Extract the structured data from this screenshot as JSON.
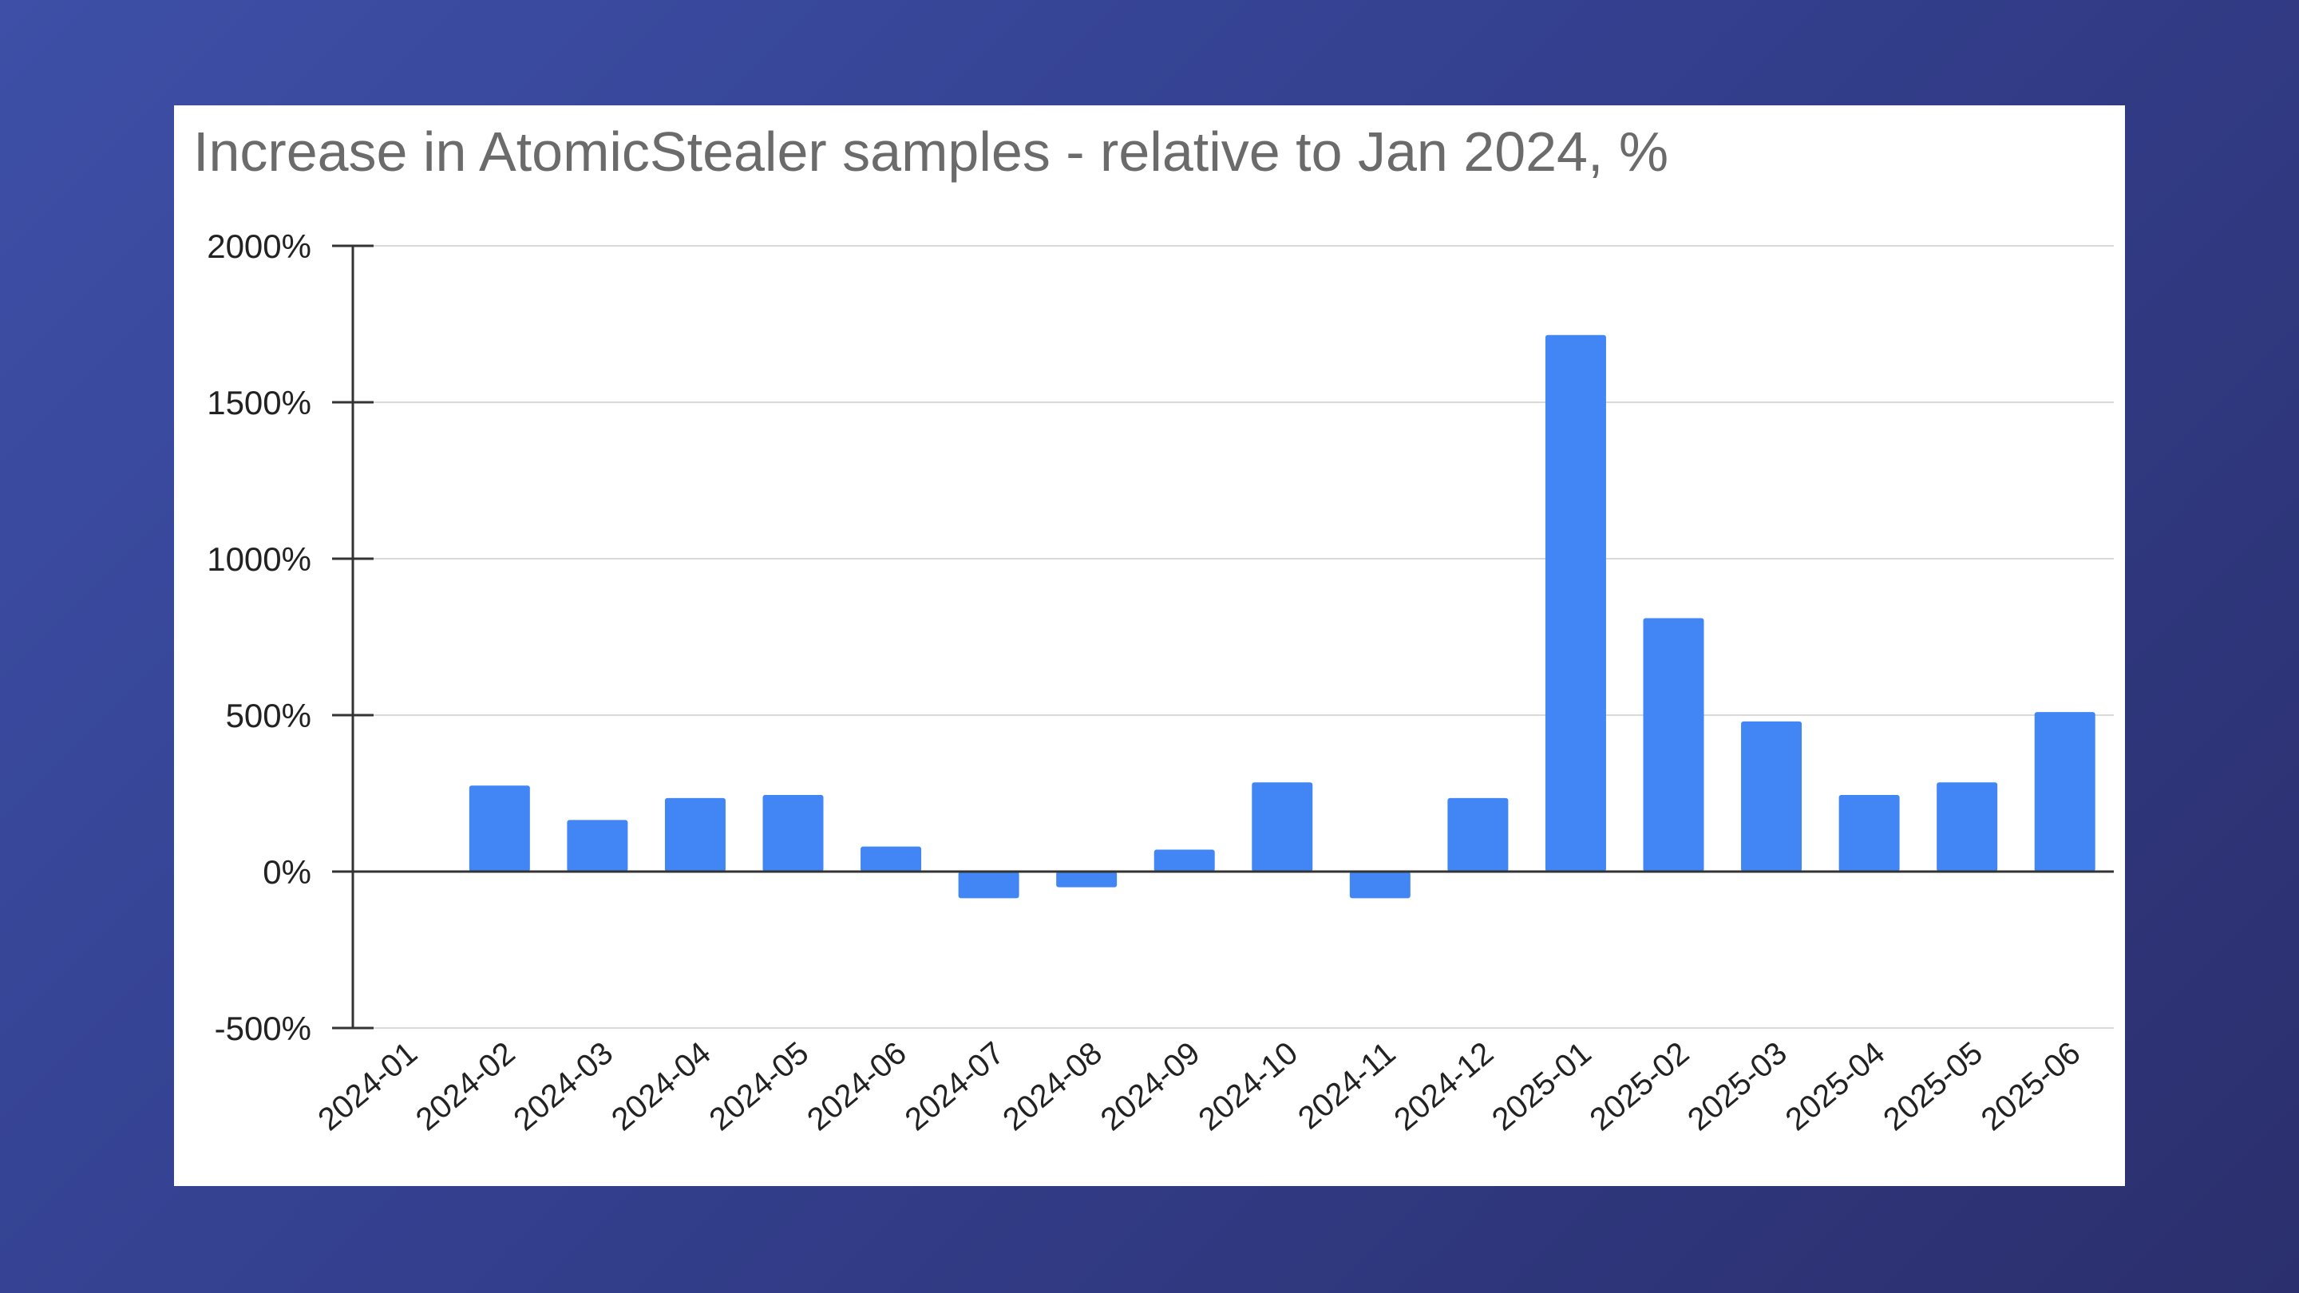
{
  "chart_data": {
    "type": "bar",
    "title": "Increase in AtomicStealer samples - relative to Jan 2024, %",
    "xlabel": "",
    "ylabel": "",
    "ylim": [
      -500,
      2000
    ],
    "yticks": [
      2000,
      1500,
      1000,
      500,
      0,
      -500
    ],
    "ytick_suffix": "%",
    "grid": true,
    "categories": [
      "2024-01",
      "2024-02",
      "2024-03",
      "2024-04",
      "2024-05",
      "2024-06",
      "2024-07",
      "2024-08",
      "2024-09",
      "2024-10",
      "2024-11",
      "2024-12",
      "2025-01",
      "2025-02",
      "2025-03",
      "2025-04",
      "2025-05",
      "2025-06"
    ],
    "values": [
      0,
      275,
      165,
      235,
      245,
      80,
      -85,
      -50,
      70,
      285,
      -85,
      235,
      1715,
      810,
      480,
      245,
      285,
      510
    ],
    "bar_color": "#4285f4"
  },
  "colors": {
    "background_start": "#3d4fa6",
    "background_end": "#2b2f6d",
    "card": "#ffffff",
    "gridline": "#d9d9d9",
    "axis": "#333333",
    "title_text": "#6b6b6b",
    "tick_text": "#222222"
  }
}
